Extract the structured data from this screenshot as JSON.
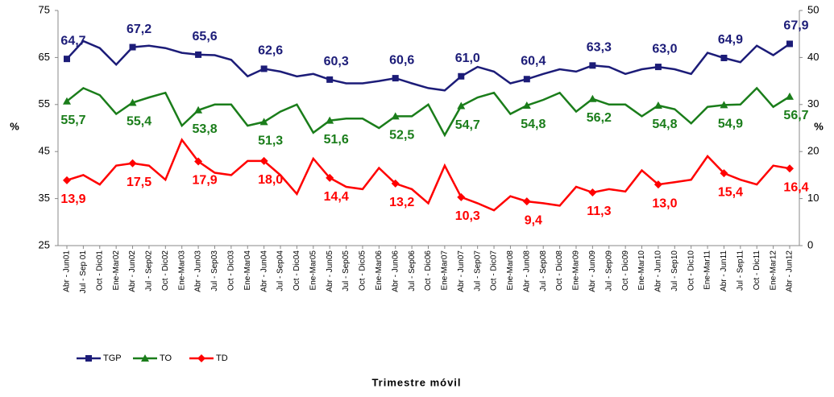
{
  "chart_data": {
    "type": "line",
    "x_label": "Trimestre móvil",
    "y_label": "%",
    "y2_label": "%",
    "categories": [
      "Abr - Jun01",
      "Jul - Sep 01",
      "Oct - Dic01",
      "Ene-Mar02",
      "Abr - Jun02",
      "Jul - Sep02",
      "Oct - Dic02",
      "Ene-Mar03",
      "Abr - Jun03",
      "Jul - Sep03",
      "Oct - Dic03",
      "Ene-Mar04",
      "Abr - Jun04",
      "Jul - Sep04",
      "Oct - Dic04",
      "Ene-Mar05",
      "Abr - Jun05",
      "Jul - Sep05",
      "Oct - Dic05",
      "Ene-Mar06",
      "Abr - Jun06",
      "Jul - Sep06",
      "Oct - Dic06",
      "Ene-Mar07",
      "Abr - Jun07",
      "Jul - Sep07",
      "Oct - Dic07",
      "Ene-Mar08",
      "Abr - Jun08",
      "Jul - Sep08",
      "Oct - Dic08",
      "Ene-Mar09",
      "Abr - Jun09",
      "Jul - Sep09",
      "Oct - Dic09",
      "Ene-Mar10",
      "Abr - Jun10",
      "Jul - Sep10",
      "Oct - Dic10",
      "Ene-Mar11",
      "Abr - Jun11",
      "Jul - Sep11",
      "Oct - Dic11",
      "Ene-Mar12",
      "Abr - Jun12"
    ],
    "ylim": [
      25,
      75
    ],
    "yticks": [
      75,
      65,
      55,
      45,
      35,
      25
    ],
    "y2lim": [
      0,
      50
    ],
    "y2ticks": [
      50,
      40,
      30,
      20,
      10,
      0
    ],
    "legend": "bottom-left",
    "series": [
      {
        "name": "TGP",
        "color": "#1c1c78",
        "marker": "square",
        "values": [
          64.7,
          68.5,
          67,
          63.5,
          67.2,
          67.5,
          67,
          66,
          65.6,
          65.5,
          64.5,
          61,
          62.6,
          62,
          61,
          61.5,
          60.3,
          59.5,
          59.5,
          60,
          60.6,
          59.5,
          58.5,
          58,
          61.0,
          63,
          62,
          59.5,
          60.4,
          61.5,
          62.5,
          62,
          63.3,
          63,
          61.5,
          62.5,
          63.0,
          62.5,
          61.5,
          66,
          64.9,
          64,
          67.5,
          65.5,
          67.9
        ],
        "value_labels": [
          "64,7",
          null,
          null,
          null,
          "67,2",
          null,
          null,
          null,
          "65,6",
          null,
          null,
          null,
          "62,6",
          null,
          null,
          null,
          "60,3",
          null,
          null,
          null,
          "60,6",
          null,
          null,
          null,
          "61,0",
          null,
          null,
          null,
          "60,4",
          null,
          null,
          null,
          "63,3",
          null,
          null,
          null,
          "63,0",
          null,
          null,
          null,
          "64,9",
          null,
          null,
          null,
          "67,9"
        ]
      },
      {
        "name": "TO",
        "color": "#1a7d1a",
        "marker": "triangle",
        "values": [
          55.7,
          58.5,
          57,
          53,
          55.4,
          56.5,
          57.5,
          50.5,
          53.8,
          55,
          55,
          50.5,
          51.3,
          53.5,
          55,
          49,
          51.6,
          52,
          52,
          50,
          52.5,
          52.5,
          55,
          48.5,
          54.7,
          56.5,
          57.5,
          53,
          54.8,
          56,
          57.5,
          53.5,
          56.2,
          55,
          55,
          52.5,
          54.8,
          54,
          51,
          54.5,
          54.9,
          55,
          58.5,
          54.5,
          56.7
        ],
        "value_labels": [
          "55,7",
          null,
          null,
          null,
          "55,4",
          null,
          null,
          null,
          "53,8",
          null,
          null,
          null,
          "51,3",
          null,
          null,
          null,
          "51,6",
          null,
          null,
          null,
          "52,5",
          null,
          null,
          null,
          "54,7",
          null,
          null,
          null,
          "54,8",
          null,
          null,
          null,
          "56,2",
          null,
          null,
          null,
          "54,8",
          null,
          null,
          null,
          "54,9",
          null,
          null,
          null,
          "56,7"
        ]
      },
      {
        "name": "TD",
        "color": "#ff0000",
        "marker": "diamond",
        "axis": "y2",
        "values": [
          13.9,
          15,
          13,
          17,
          17.5,
          17,
          14,
          22.5,
          17.9,
          15.5,
          15,
          18,
          18.0,
          15,
          11,
          18.5,
          14.4,
          12.5,
          12,
          16.5,
          13.2,
          12,
          9,
          17,
          10.3,
          9,
          7.5,
          10.5,
          9.4,
          9,
          8.5,
          12.5,
          11.3,
          12,
          11.5,
          16,
          13.0,
          13.5,
          14,
          19,
          15.4,
          14,
          13,
          17,
          16.4
        ],
        "value_labels": [
          "13,9",
          null,
          null,
          null,
          "17,5",
          null,
          null,
          null,
          "17,9",
          null,
          null,
          null,
          "18,0",
          null,
          null,
          null,
          "14,4",
          null,
          null,
          null,
          "13,2",
          null,
          null,
          null,
          "10,3",
          null,
          null,
          null,
          "9,4",
          null,
          null,
          null,
          "11,3",
          null,
          null,
          null,
          "13,0",
          null,
          null,
          null,
          "15,4",
          null,
          null,
          null,
          "16,4"
        ]
      }
    ]
  }
}
